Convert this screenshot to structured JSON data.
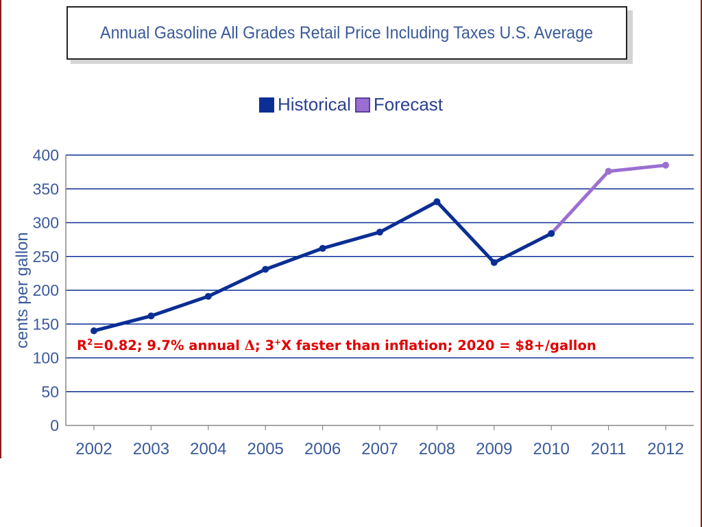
{
  "colors": {
    "historical": "#0a2e94",
    "forecast": "#9b6fd1",
    "axis": "#3a5a9a",
    "grid": "#0a2e94",
    "annotation": "#e00000"
  },
  "chart_data": {
    "type": "line",
    "title": "Annual Gasoline All Grades Retail Price Including Taxes U.S. Average",
    "xlabel": "",
    "ylabel": "cents per gallon",
    "ylim": [
      0,
      400
    ],
    "yticks": [
      "0",
      "50",
      "100",
      "150",
      "200",
      "250",
      "300",
      "350",
      "400"
    ],
    "categories": [
      "2002",
      "2003",
      "2004",
      "2005",
      "2006",
      "2007",
      "2008",
      "2009",
      "2010",
      "2011",
      "2012"
    ],
    "legend_position": "top",
    "grid": true,
    "series": [
      {
        "name": "Historical",
        "x": [
          "2002",
          "2003",
          "2004",
          "2005",
          "2006",
          "2007",
          "2008",
          "2009",
          "2010"
        ],
        "values": [
          140,
          162,
          191,
          231,
          262,
          286,
          331,
          241,
          284
        ]
      },
      {
        "name": "Forecast",
        "x": [
          "2010",
          "2011",
          "2012"
        ],
        "values": [
          284,
          376,
          385
        ]
      }
    ]
  },
  "annotation": {
    "part1": "R",
    "sup1": "2",
    "part2": "=0.82; 9.7% annual ",
    "delta": "Δ",
    "part3": "; 3",
    "sup2": "+",
    "part4": "X faster than inflation; 2020 = $8+/gallon"
  }
}
